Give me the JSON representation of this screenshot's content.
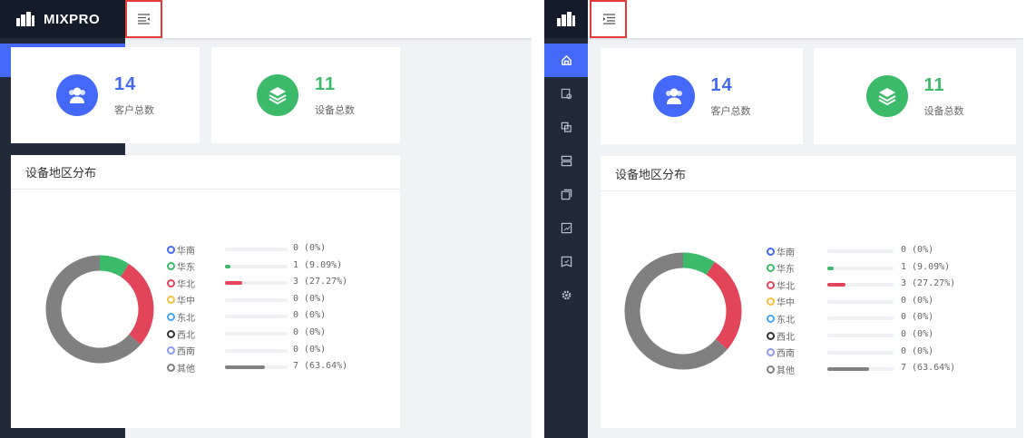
{
  "app": {
    "title": "MIXPRO"
  },
  "menu": [
    {
      "label": "首页",
      "icon": "home-icon",
      "active": true
    },
    {
      "label": "客户",
      "icon": "customer-icon"
    },
    {
      "label": "项目",
      "icon": "project-icon"
    },
    {
      "label": "设备",
      "icon": "device-icon"
    },
    {
      "label": "事件",
      "icon": "event-icon"
    },
    {
      "label": "报告",
      "icon": "report-icon"
    },
    {
      "label": "任务",
      "icon": "task-icon"
    },
    {
      "label": "设置",
      "icon": "gear-icon"
    }
  ],
  "stats": [
    {
      "value": "14",
      "label": "客户总数",
      "color": "#4468f8",
      "icon": "users-icon"
    },
    {
      "value": "11",
      "label": "设备总数",
      "color": "#3bba6a",
      "icon": "layers-icon"
    }
  ],
  "chart_data": {
    "type": "pie",
    "title": "设备地区分布",
    "categories": [
      "华南",
      "华东",
      "华北",
      "华中",
      "东北",
      "西北",
      "西南",
      "其他"
    ],
    "values": [
      0,
      1,
      3,
      0,
      0,
      0,
      0,
      7
    ],
    "labels": [
      "0 (0%)",
      "1 (9.09%)",
      "3 (27.27%)",
      "0 (0%)",
      "0 (0%)",
      "0 (0%)",
      "0 (0%)",
      "7 (63.64%)"
    ],
    "colors": [
      "#4468f8",
      "#3bba6a",
      "#e24459",
      "#f7c243",
      "#45a6f7",
      "#333333",
      "#8c97f5",
      "#808080"
    ],
    "donut": true
  },
  "panels": [
    {
      "state": "expanded"
    },
    {
      "state": "collapsed"
    }
  ]
}
